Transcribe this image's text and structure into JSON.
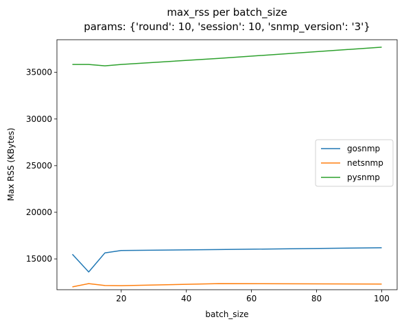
{
  "chart_data": {
    "type": "line",
    "title": "max_rss per batch_size",
    "subtitle": "params: {'round': 10, 'session': 10, 'snmp_version': '3'}",
    "xlabel": "batch_size",
    "ylabel": "Max RSS (KBytes)",
    "xlim": [
      0.25,
      104.75
    ],
    "ylim": [
      11700,
      38500
    ],
    "xticks": [
      20,
      40,
      60,
      80,
      100
    ],
    "yticks": [
      15000,
      20000,
      25000,
      30000,
      35000
    ],
    "grid": false,
    "legend_position": "center-right",
    "series": [
      {
        "name": "gosnmp",
        "color": "#1f77b4",
        "x": [
          5,
          10,
          15,
          20,
          50,
          100
        ],
        "y": [
          15500,
          13600,
          15650,
          15900,
          16000,
          16200
        ]
      },
      {
        "name": "netsnmp",
        "color": "#ff7f0e",
        "x": [
          5,
          10,
          15,
          20,
          50,
          100
        ],
        "y": [
          12000,
          12350,
          12150,
          12130,
          12350,
          12300
        ]
      },
      {
        "name": "pysnmp",
        "color": "#2ca02c",
        "x": [
          5,
          10,
          15,
          20,
          50,
          100
        ],
        "y": [
          35850,
          35850,
          35700,
          35850,
          36500,
          37700
        ]
      }
    ]
  }
}
